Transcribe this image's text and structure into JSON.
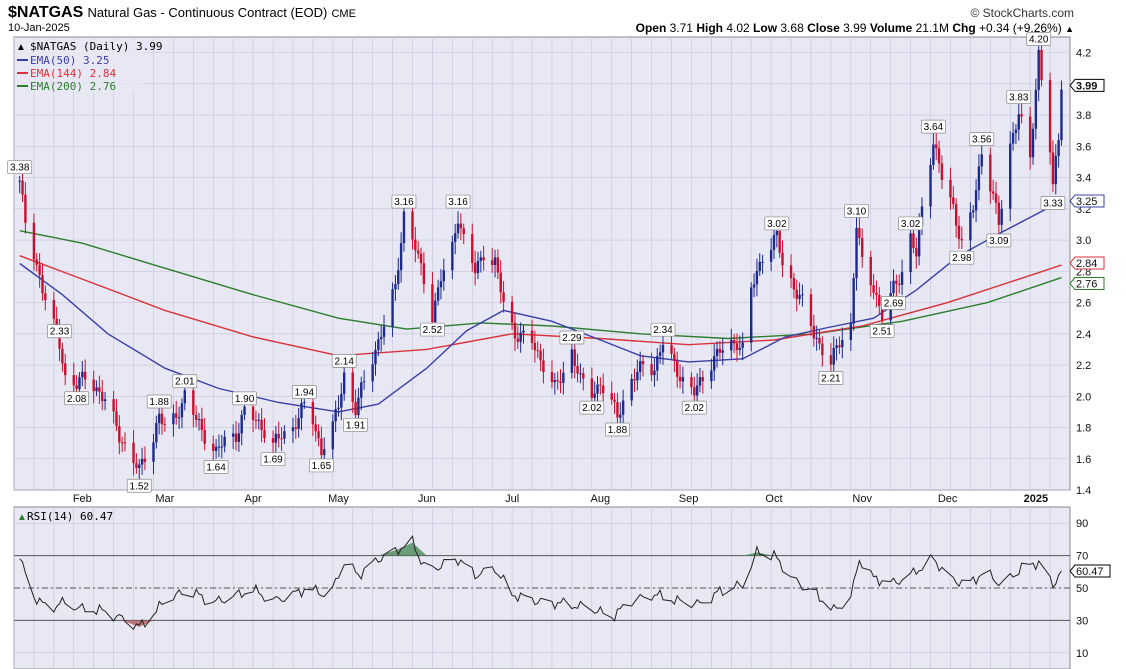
{
  "header": {
    "symbol": "$NATGAS",
    "description": "Natural Gas - Continuous Contract (EOD)",
    "exchange": "CME",
    "date": "10-Jan-2025",
    "brand": "© StockCharts.com",
    "open_label": "Open",
    "open": "3.71",
    "high_label": "High",
    "high": "4.02",
    "low_label": "Low",
    "low": "3.68",
    "close_label": "Close",
    "close": "3.99",
    "volume_label": "Volume",
    "volume": "21.1M",
    "chg_label": "Chg",
    "chg": "+0.34 (+9.26%)"
  },
  "legend": {
    "main": "$NATGAS (Daily) 3.99",
    "ema50": "EMA(50) 3.25",
    "ema144": "EMA(144) 2.84",
    "ema200": "EMA(200) 2.76",
    "rsi": "RSI(14) 60.47"
  },
  "colors": {
    "up": "#1c2a8c",
    "down": "#c8102e",
    "ema50": "#3a3fa8",
    "ema144": "#d8323a",
    "ema200": "#2e7d2e",
    "panel_bg": "#e8e8f5",
    "grid": "#c4c4d8",
    "rsi_line": "#222222"
  },
  "chart_data": [
    {
      "type": "candlestick",
      "title": "$NATGAS (Daily) 3.99",
      "ylim": [
        1.4,
        4.3
      ],
      "y_ticks": [
        "4.2",
        "4.0",
        "3.8",
        "3.6",
        "3.4",
        "3.2",
        "3.0",
        "2.8",
        "2.6",
        "2.4",
        "2.2",
        "2.0",
        "1.8",
        "1.6",
        "1.4"
      ],
      "x_ticks": [
        "Feb",
        "Mar",
        "Apr",
        "May",
        "Jun",
        "Jul",
        "Aug",
        "Sep",
        "Oct",
        "Nov",
        "Dec",
        "2025"
      ],
      "last_price_labels": [
        "3.99",
        "3.25",
        "2.84",
        "2.76"
      ],
      "price_anchors": [
        [
          "2024-01-10",
          3.38
        ],
        [
          "2024-01-12",
          3.1
        ],
        [
          "2024-01-15",
          2.9
        ],
        [
          "2024-01-18",
          2.7
        ],
        [
          "2024-01-22",
          2.45
        ],
        [
          "2024-01-24",
          2.33
        ],
        [
          "2024-01-26",
          2.12
        ],
        [
          "2024-01-30",
          2.08
        ],
        [
          "2024-02-02",
          2.12
        ],
        [
          "2024-02-06",
          2.05
        ],
        [
          "2024-02-10",
          1.95
        ],
        [
          "2024-02-14",
          1.75
        ],
        [
          "2024-02-18",
          1.62
        ],
        [
          "2024-02-21",
          1.52
        ],
        [
          "2024-02-23",
          1.62
        ],
        [
          "2024-02-26",
          1.74
        ],
        [
          "2024-02-28",
          1.88
        ],
        [
          "2024-03-01",
          1.8
        ],
        [
          "2024-03-04",
          1.85
        ],
        [
          "2024-03-07",
          1.95
        ],
        [
          "2024-03-08",
          2.01
        ],
        [
          "2024-03-12",
          1.85
        ],
        [
          "2024-03-15",
          1.75
        ],
        [
          "2024-03-19",
          1.64
        ],
        [
          "2024-03-22",
          1.72
        ],
        [
          "2024-03-26",
          1.75
        ],
        [
          "2024-03-29",
          1.9
        ],
        [
          "2024-04-02",
          1.85
        ],
        [
          "2024-04-05",
          1.78
        ],
        [
          "2024-04-08",
          1.69
        ],
        [
          "2024-04-11",
          1.75
        ],
        [
          "2024-04-15",
          1.8
        ],
        [
          "2024-04-19",
          1.94
        ],
        [
          "2024-04-22",
          1.85
        ],
        [
          "2024-04-25",
          1.65
        ],
        [
          "2024-04-29",
          1.8
        ],
        [
          "2024-05-01",
          1.95
        ],
        [
          "2024-05-03",
          2.14
        ],
        [
          "2024-05-07",
          1.91
        ],
        [
          "2024-05-10",
          2.1
        ],
        [
          "2024-05-14",
          2.3
        ],
        [
          "2024-05-17",
          2.45
        ],
        [
          "2024-05-21",
          2.7
        ],
        [
          "2024-05-24",
          3.16
        ],
        [
          "2024-05-28",
          2.95
        ],
        [
          "2024-05-31",
          2.75
        ],
        [
          "2024-06-03",
          2.52
        ],
        [
          "2024-06-06",
          2.75
        ],
        [
          "2024-06-10",
          2.95
        ],
        [
          "2024-06-12",
          3.16
        ],
        [
          "2024-06-14",
          3.0
        ],
        [
          "2024-06-18",
          2.8
        ],
        [
          "2024-06-21",
          2.92
        ],
        [
          "2024-06-25",
          2.85
        ],
        [
          "2024-06-28",
          2.6
        ],
        [
          "2024-07-02",
          2.4
        ],
        [
          "2024-07-08",
          2.35
        ],
        [
          "2024-07-12",
          2.2
        ],
        [
          "2024-07-16",
          2.05
        ],
        [
          "2024-07-19",
          2.15
        ],
        [
          "2024-07-22",
          2.29
        ],
        [
          "2024-07-25",
          2.1
        ],
        [
          "2024-07-29",
          2.02
        ],
        [
          "2024-08-01",
          2.08
        ],
        [
          "2024-08-05",
          1.95
        ],
        [
          "2024-08-07",
          1.88
        ],
        [
          "2024-08-12",
          2.1
        ],
        [
          "2024-08-16",
          2.2
        ],
        [
          "2024-08-20",
          2.18
        ],
        [
          "2024-08-23",
          2.34
        ],
        [
          "2024-08-27",
          2.2
        ],
        [
          "2024-08-30",
          2.1
        ],
        [
          "2024-09-03",
          2.02
        ],
        [
          "2024-09-06",
          2.12
        ],
        [
          "2024-09-10",
          2.25
        ],
        [
          "2024-09-13",
          2.3
        ],
        [
          "2024-09-18",
          2.35
        ],
        [
          "2024-09-20",
          2.3
        ],
        [
          "2024-09-23",
          2.68
        ],
        [
          "2024-09-27",
          2.9
        ],
        [
          "2024-10-02",
          3.02
        ],
        [
          "2024-10-04",
          2.85
        ],
        [
          "2024-10-08",
          2.7
        ],
        [
          "2024-10-11",
          2.6
        ],
        [
          "2024-10-15",
          2.4
        ],
        [
          "2024-10-18",
          2.3
        ],
        [
          "2024-10-21",
          2.21
        ],
        [
          "2024-10-24",
          2.35
        ],
        [
          "2024-10-28",
          2.45
        ],
        [
          "2024-10-30",
          3.1
        ],
        [
          "2024-11-01",
          2.85
        ],
        [
          "2024-11-05",
          2.7
        ],
        [
          "2024-11-08",
          2.51
        ],
        [
          "2024-11-12",
          2.69
        ],
        [
          "2024-11-15",
          2.8
        ],
        [
          "2024-11-18",
          3.02
        ],
        [
          "2024-11-20",
          2.9
        ],
        [
          "2024-11-22",
          3.2
        ],
        [
          "2024-11-26",
          3.64
        ],
        [
          "2024-11-29",
          3.4
        ],
        [
          "2024-12-03",
          3.2
        ],
        [
          "2024-12-06",
          2.98
        ],
        [
          "2024-12-10",
          3.2
        ],
        [
          "2024-12-13",
          3.56
        ],
        [
          "2024-12-17",
          3.3
        ],
        [
          "2024-12-19",
          3.09
        ],
        [
          "2024-12-23",
          3.6
        ],
        [
          "2024-12-26",
          3.83
        ],
        [
          "2024-12-30",
          3.5
        ],
        [
          "2025-01-02",
          4.2
        ],
        [
          "2025-01-06",
          3.6
        ],
        [
          "2025-01-07",
          3.33
        ],
        [
          "2025-01-09",
          3.65
        ],
        [
          "2025-01-10",
          3.99
        ]
      ],
      "callouts": [
        {
          "value": "3.38",
          "date": "2024-01-10",
          "pos": "above"
        },
        {
          "value": "2.33",
          "date": "2024-01-24",
          "pos": "above"
        },
        {
          "value": "2.08",
          "date": "2024-01-30",
          "pos": "below"
        },
        {
          "value": "1.52",
          "date": "2024-02-21",
          "pos": "below"
        },
        {
          "value": "1.88",
          "date": "2024-02-28",
          "pos": "above"
        },
        {
          "value": "2.01",
          "date": "2024-03-08",
          "pos": "above"
        },
        {
          "value": "1.64",
          "date": "2024-03-19",
          "pos": "below"
        },
        {
          "value": "1.90",
          "date": "2024-03-29",
          "pos": "above"
        },
        {
          "value": "1.69",
          "date": "2024-04-08",
          "pos": "below"
        },
        {
          "value": "1.94",
          "date": "2024-04-19",
          "pos": "above"
        },
        {
          "value": "1.65",
          "date": "2024-04-25",
          "pos": "below"
        },
        {
          "value": "2.14",
          "date": "2024-05-03",
          "pos": "above"
        },
        {
          "value": "1.91",
          "date": "2024-05-07",
          "pos": "below"
        },
        {
          "value": "3.16",
          "date": "2024-05-24",
          "pos": "above"
        },
        {
          "value": "2.52",
          "date": "2024-06-03",
          "pos": "below"
        },
        {
          "value": "3.16",
          "date": "2024-06-12",
          "pos": "above"
        },
        {
          "value": "2.29",
          "date": "2024-07-22",
          "pos": "above"
        },
        {
          "value": "2.02",
          "date": "2024-07-29",
          "pos": "below"
        },
        {
          "value": "1.88",
          "date": "2024-08-07",
          "pos": "below"
        },
        {
          "value": "2.34",
          "date": "2024-08-23",
          "pos": "above"
        },
        {
          "value": "2.02",
          "date": "2024-09-03",
          "pos": "below"
        },
        {
          "value": "3.02",
          "date": "2024-10-02",
          "pos": "above"
        },
        {
          "value": "2.21",
          "date": "2024-10-21",
          "pos": "below"
        },
        {
          "value": "3.10",
          "date": "2024-10-30",
          "pos": "above"
        },
        {
          "value": "2.51",
          "date": "2024-11-08",
          "pos": "below"
        },
        {
          "value": "2.69",
          "date": "2024-11-12",
          "pos": "below"
        },
        {
          "value": "3.02",
          "date": "2024-11-18",
          "pos": "above"
        },
        {
          "value": "3.64",
          "date": "2024-11-26",
          "pos": "above"
        },
        {
          "value": "2.98",
          "date": "2024-12-06",
          "pos": "below"
        },
        {
          "value": "3.56",
          "date": "2024-12-13",
          "pos": "above"
        },
        {
          "value": "3.09",
          "date": "2024-12-19",
          "pos": "below"
        },
        {
          "value": "3.83",
          "date": "2024-12-26",
          "pos": "above"
        },
        {
          "value": "4.20",
          "date": "2025-01-02",
          "pos": "above"
        },
        {
          "value": "3.33",
          "date": "2025-01-07",
          "pos": "below"
        }
      ],
      "ema50": [
        [
          "2024-01-10",
          2.85
        ],
        [
          "2024-01-25",
          2.65
        ],
        [
          "2024-02-10",
          2.4
        ],
        [
          "2024-03-01",
          2.18
        ],
        [
          "2024-03-20",
          2.05
        ],
        [
          "2024-04-10",
          1.96
        ],
        [
          "2024-05-01",
          1.9
        ],
        [
          "2024-05-15",
          1.95
        ],
        [
          "2024-06-01",
          2.18
        ],
        [
          "2024-06-15",
          2.42
        ],
        [
          "2024-06-28",
          2.55
        ],
        [
          "2024-07-15",
          2.48
        ],
        [
          "2024-08-01",
          2.36
        ],
        [
          "2024-08-15",
          2.26
        ],
        [
          "2024-09-01",
          2.22
        ],
        [
          "2024-09-20",
          2.24
        ],
        [
          "2024-10-05",
          2.38
        ],
        [
          "2024-10-20",
          2.44
        ],
        [
          "2024-11-05",
          2.5
        ],
        [
          "2024-11-20",
          2.68
        ],
        [
          "2024-12-05",
          2.9
        ],
        [
          "2024-12-20",
          3.05
        ],
        [
          "2025-01-10",
          3.25
        ]
      ],
      "ema144": [
        [
          "2024-01-10",
          2.9
        ],
        [
          "2024-02-01",
          2.75
        ],
        [
          "2024-03-01",
          2.55
        ],
        [
          "2024-04-01",
          2.38
        ],
        [
          "2024-05-01",
          2.26
        ],
        [
          "2024-06-01",
          2.3
        ],
        [
          "2024-07-01",
          2.4
        ],
        [
          "2024-08-01",
          2.37
        ],
        [
          "2024-09-01",
          2.33
        ],
        [
          "2024-10-01",
          2.36
        ],
        [
          "2024-11-01",
          2.45
        ],
        [
          "2024-12-01",
          2.6
        ],
        [
          "2025-01-10",
          2.84
        ]
      ],
      "ema200": [
        [
          "2024-01-10",
          3.06
        ],
        [
          "2024-02-01",
          2.98
        ],
        [
          "2024-03-01",
          2.82
        ],
        [
          "2024-04-01",
          2.65
        ],
        [
          "2024-05-01",
          2.5
        ],
        [
          "2024-05-25",
          2.43
        ],
        [
          "2024-06-20",
          2.47
        ],
        [
          "2024-07-15",
          2.45
        ],
        [
          "2024-08-15",
          2.4
        ],
        [
          "2024-09-15",
          2.37
        ],
        [
          "2024-10-15",
          2.4
        ],
        [
          "2024-11-15",
          2.48
        ],
        [
          "2024-12-15",
          2.6
        ],
        [
          "2025-01-10",
          2.76
        ]
      ]
    },
    {
      "type": "line",
      "title": "RSI(14) 60.47",
      "ylim": [
        0,
        100
      ],
      "y_ticks": [
        "90",
        "70",
        "50",
        "30",
        "10"
      ],
      "levels": [
        70,
        50,
        30
      ],
      "last_value": "60.47",
      "points": [
        [
          "2024-01-10",
          68
        ],
        [
          "2024-01-15",
          45
        ],
        [
          "2024-01-20",
          37
        ],
        [
          "2024-01-25",
          41
        ],
        [
          "2024-02-01",
          37
        ],
        [
          "2024-02-08",
          36
        ],
        [
          "2024-02-15",
          31
        ],
        [
          "2024-02-21",
          26
        ],
        [
          "2024-02-26",
          34
        ],
        [
          "2024-03-02",
          44
        ],
        [
          "2024-03-10",
          48
        ],
        [
          "2024-03-18",
          41
        ],
        [
          "2024-03-25",
          45
        ],
        [
          "2024-04-01",
          49
        ],
        [
          "2024-04-08",
          42
        ],
        [
          "2024-04-15",
          46
        ],
        [
          "2024-04-20",
          50
        ],
        [
          "2024-04-28",
          45
        ],
        [
          "2024-05-03",
          66
        ],
        [
          "2024-05-08",
          58
        ],
        [
          "2024-05-15",
          68
        ],
        [
          "2024-05-22",
          74
        ],
        [
          "2024-05-27",
          78
        ],
        [
          "2024-06-01",
          60
        ],
        [
          "2024-06-06",
          64
        ],
        [
          "2024-06-12",
          68
        ],
        [
          "2024-06-18",
          58
        ],
        [
          "2024-06-25",
          62
        ],
        [
          "2024-07-01",
          46
        ],
        [
          "2024-07-10",
          42
        ],
        [
          "2024-07-20",
          40
        ],
        [
          "2024-07-28",
          38
        ],
        [
          "2024-08-05",
          32
        ],
        [
          "2024-08-12",
          42
        ],
        [
          "2024-08-20",
          46
        ],
        [
          "2024-08-28",
          42
        ],
        [
          "2024-09-05",
          40
        ],
        [
          "2024-09-12",
          48
        ],
        [
          "2024-09-20",
          52
        ],
        [
          "2024-09-25",
          72
        ],
        [
          "2024-10-01",
          70
        ],
        [
          "2024-10-08",
          55
        ],
        [
          "2024-10-15",
          48
        ],
        [
          "2024-10-22",
          36
        ],
        [
          "2024-10-28",
          44
        ],
        [
          "2024-10-31",
          68
        ],
        [
          "2024-11-05",
          56
        ],
        [
          "2024-11-12",
          53
        ],
        [
          "2024-11-18",
          58
        ],
        [
          "2024-11-26",
          68
        ],
        [
          "2024-12-02",
          56
        ],
        [
          "2024-12-08",
          52
        ],
        [
          "2024-12-14",
          60
        ],
        [
          "2024-12-20",
          52
        ],
        [
          "2024-12-27",
          62
        ],
        [
          "2025-01-02",
          66
        ],
        [
          "2025-01-07",
          52
        ],
        [
          "2025-01-10",
          60.47
        ]
      ]
    }
  ]
}
